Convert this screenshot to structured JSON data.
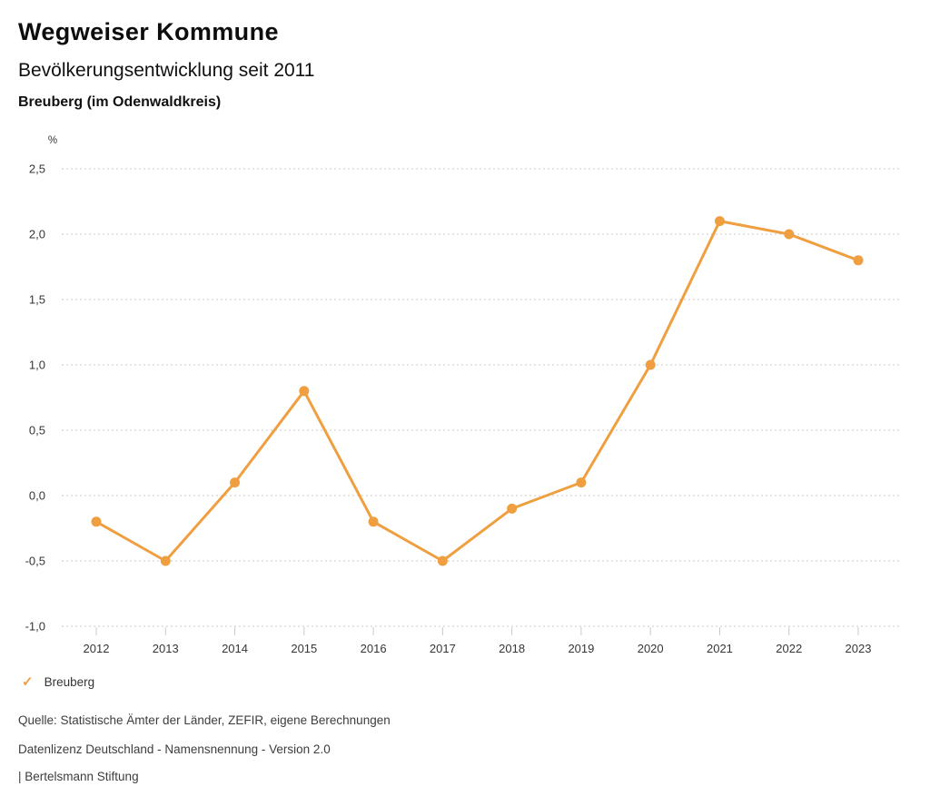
{
  "page": {
    "title": "Wegweiser Kommune"
  },
  "chart_data": {
    "type": "line",
    "title": "Bevölkerungsentwicklung seit 2011",
    "subtitle": "Breuberg (im Odenwaldkreis)",
    "xlabel": "",
    "ylabel": "%",
    "unit_label": "%",
    "categories": [
      "2012",
      "2013",
      "2014",
      "2015",
      "2016",
      "2017",
      "2018",
      "2019",
      "2020",
      "2021",
      "2022",
      "2023"
    ],
    "series": [
      {
        "name": "Breuberg",
        "values": [
          -0.2,
          -0.5,
          0.1,
          0.8,
          -0.2,
          -0.5,
          -0.1,
          0.1,
          1.0,
          2.1,
          2.0,
          1.8
        ],
        "color": "#EF9F40"
      }
    ],
    "ylim": [
      -1.0,
      2.5
    ],
    "ytick_step": 0.5,
    "yticks": [
      {
        "value": 2.5,
        "label": "2,5"
      },
      {
        "value": 2.0,
        "label": "2,0"
      },
      {
        "value": 1.5,
        "label": "1,5"
      },
      {
        "value": 1.0,
        "label": "1,0"
      },
      {
        "value": 0.5,
        "label": "0,5"
      },
      {
        "value": 0.0,
        "label": "0,0"
      },
      {
        "value": -0.5,
        "label": "-0,5"
      },
      {
        "value": -1.0,
        "label": "-1,0"
      }
    ],
    "grid": "dotted horizontal gridlines, no vertical gridlines",
    "legend": {
      "position": "bottom-left",
      "checkmark_icon": "✓",
      "items": [
        {
          "label": "Breuberg",
          "color": "#EF9F40"
        }
      ]
    }
  },
  "footer": {
    "source": "Quelle: Statistische Ämter der Länder, ZEFIR, eigene Berechnungen",
    "license": "Datenlizenz Deutschland - Namensnennung - Version 2.0",
    "attribution": "| Bertelsmann Stiftung"
  },
  "colors": {
    "accent": "#EF9F40",
    "grid": "#C9C9C9",
    "axis_text": "#363636",
    "title_text": "#0D0D0D"
  }
}
